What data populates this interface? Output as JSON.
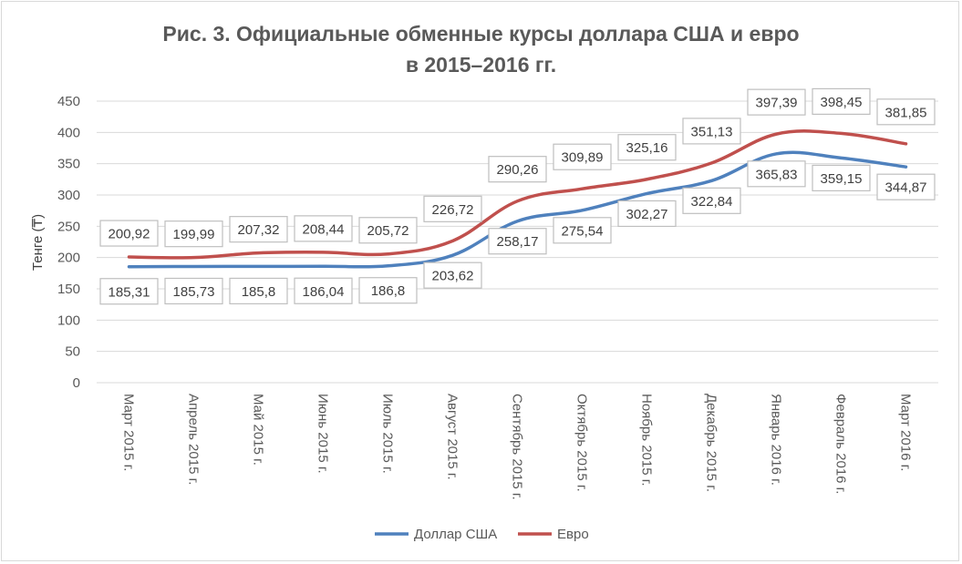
{
  "chart_data": {
    "type": "line",
    "title_line1": "Рис. 3. Официальные обменные курсы доллара США и евро",
    "title_line2": "в 2015–2016 гг.",
    "ylabel": "Тенге (₸)",
    "xlabel": "",
    "ylim": [
      0,
      450
    ],
    "yticks": [
      "0",
      "50",
      "100",
      "150",
      "200",
      "250",
      "300",
      "350",
      "400",
      "450"
    ],
    "categories": [
      "Март 2015 г.",
      "Апрель 2015 г.",
      "Май 2015 г.",
      "Июнь 2015 г.",
      "Июль 2015 г.",
      "Август 2015 г.",
      "Сентябрь 2015 г.",
      "Октябрь 2015 г.",
      "Ноябрь 2015 г.",
      "Декабрь 2015 г.",
      "Январь 2016 г.",
      "Февраль 2016 г.",
      "Март 2016 г."
    ],
    "grid": true,
    "legend_position": "bottom",
    "series": [
      {
        "name": "Доллар США",
        "color": "#4f81bd",
        "values": [
          185.31,
          185.73,
          185.8,
          186.04,
          186.8,
          203.62,
          258.17,
          275.54,
          302.27,
          322.84,
          365.83,
          359.15,
          344.87
        ],
        "labels": [
          "185,31",
          "185,73",
          "185,8",
          "186,04",
          "186,8",
          "203,62",
          "258,17",
          "275,54",
          "302,27",
          "322,84",
          "365,83",
          "359,15",
          "344,87"
        ]
      },
      {
        "name": "Евро",
        "color": "#c0504d",
        "values": [
          200.92,
          199.99,
          207.32,
          208.44,
          205.72,
          226.72,
          290.26,
          309.89,
          325.16,
          351.13,
          397.39,
          398.45,
          381.85
        ],
        "labels": [
          "200,92",
          "199,99",
          "207,32",
          "208,44",
          "205,72",
          "226,72",
          "290,26",
          "309,89",
          "325,16",
          "351,13",
          "397,39",
          "398,45",
          "381,85"
        ]
      }
    ]
  }
}
